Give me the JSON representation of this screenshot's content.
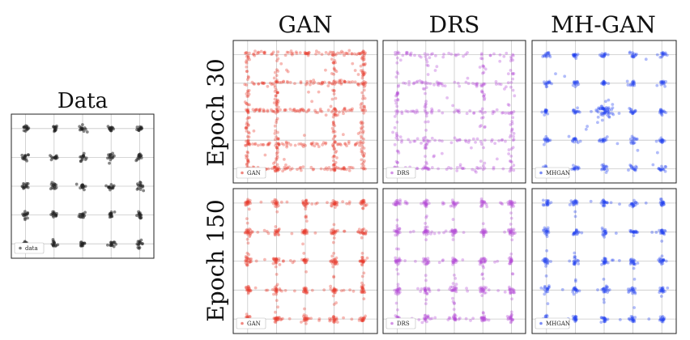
{
  "figure": {
    "data_panel_title": "Data",
    "column_titles": [
      "GAN",
      "DRS",
      "MH-GAN"
    ],
    "row_titles": [
      "Epoch 30",
      "Epoch 150"
    ]
  },
  "chart_data": {
    "type": "scatter",
    "description_grid": "5x5 mixture of Gaussians; modes at centers -4,-2,0,2,4 on both axes",
    "xlim": [
      -5,
      5
    ],
    "ylim": [
      -5,
      5
    ],
    "mode_centers": [
      -4,
      -2,
      0,
      2,
      4
    ],
    "grid": true,
    "legend_placement": "bottom-left",
    "panels": [
      {
        "id": "data",
        "legend": "data",
        "color": "#222222",
        "title": "Data"
      },
      {
        "id": "gan-30",
        "row": "Epoch 30",
        "col": "GAN",
        "legend": "GAN",
        "color": "#e8392b"
      },
      {
        "id": "drs-30",
        "row": "Epoch 30",
        "col": "DRS",
        "legend": "DRS",
        "color": "#b54ad6"
      },
      {
        "id": "mhgan-30",
        "row": "Epoch 30",
        "col": "MH-GAN",
        "legend": "MHGAN",
        "color": "#1f3ef0"
      },
      {
        "id": "gan-150",
        "row": "Epoch 150",
        "col": "GAN",
        "legend": "GAN",
        "color": "#e8392b"
      },
      {
        "id": "drs-150",
        "row": "Epoch 150",
        "col": "DRS",
        "legend": "DRS",
        "color": "#b54ad6"
      },
      {
        "id": "mhgan-150",
        "row": "Epoch 150",
        "col": "MH-GAN",
        "legend": "MHGAN",
        "color": "#1f3ef0"
      }
    ]
  }
}
